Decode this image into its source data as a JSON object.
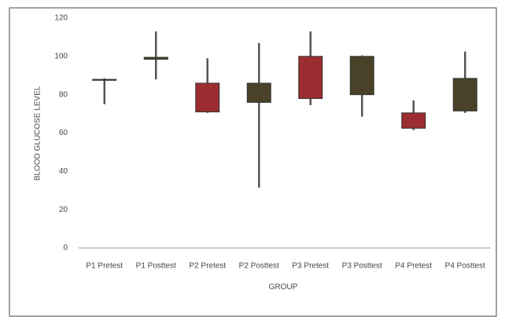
{
  "chart_data": {
    "type": "box",
    "x_label": "GROUP",
    "y_label": "BLOOD GLUCOSE LEVEL",
    "categories": [
      "P1 Pretest",
      "P1 Posttest",
      "P2 Pretest",
      "P2 Posttest",
      "P3 Pretest",
      "P3 Posttest",
      "P4 Pretest",
      "P4 Posttest"
    ],
    "min": [
      75,
      88,
      70.5,
      31.5,
      74.5,
      68.5,
      61.5,
      70.5
    ],
    "q1": [
      87.5,
      98.5,
      71,
      76,
      78,
      80,
      62.5,
      71.5
    ],
    "q3": [
      88,
      99.5,
      86,
      86,
      100,
      100,
      70.5,
      88.5
    ],
    "max": [
      88.5,
      113,
      99,
      107,
      113,
      100.5,
      77,
      102.5
    ],
    "colors": [
      "#9b2d30",
      "#4a4228",
      "#9b2d30",
      "#4a4228",
      "#9b2d30",
      "#4a4228",
      "#9b2d30",
      "#4a4228"
    ],
    "ylim": [
      0,
      120
    ],
    "yticks": [
      0,
      20,
      40,
      60,
      80,
      100,
      120
    ]
  }
}
